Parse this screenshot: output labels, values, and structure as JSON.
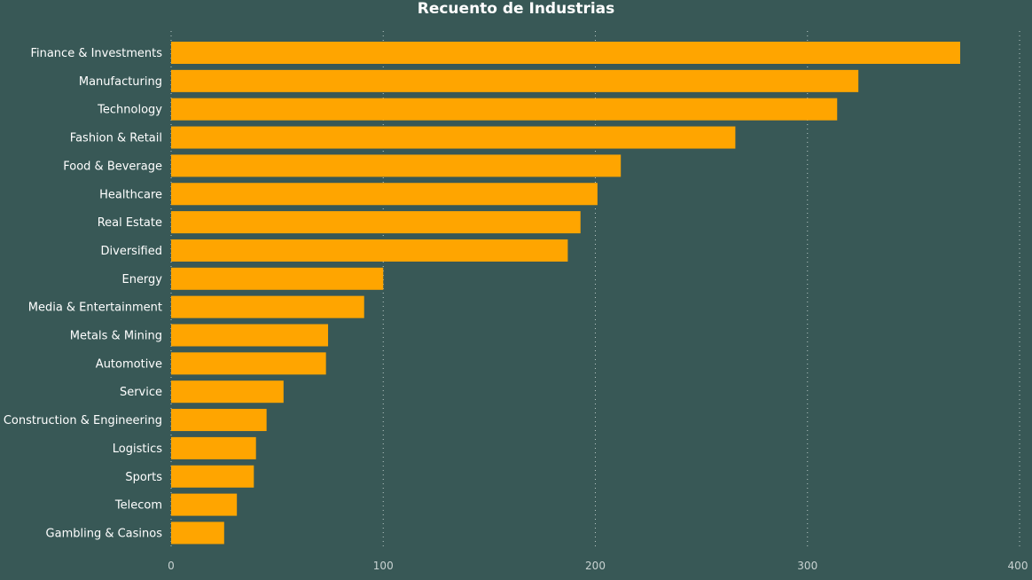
{
  "chart_data": {
    "type": "bar",
    "orientation": "horizontal",
    "title": "Recuento de Industrias",
    "xlabel": "",
    "ylabel": "",
    "categories": [
      "Finance & Investments",
      "Manufacturing",
      "Technology",
      "Fashion & Retail",
      "Food & Beverage",
      "Healthcare",
      "Real Estate",
      "Diversified",
      "Energy",
      "Media & Entertainment",
      "Metals & Mining",
      "Automotive",
      "Service",
      "Construction & Engineering",
      "Logistics",
      "Sports",
      "Telecom",
      "Gambling & Casinos"
    ],
    "values": [
      372,
      324,
      314,
      266,
      212,
      201,
      193,
      187,
      100,
      91,
      74,
      73,
      53,
      45,
      40,
      39,
      31,
      25
    ],
    "xlim": [
      0,
      400
    ],
    "xticks": [
      0,
      100,
      200,
      300,
      400
    ],
    "grid": "vertical-dotted",
    "legend": "none",
    "colors": {
      "background": "#385856",
      "bar": "#FFA500",
      "grid": "#b9c7c5",
      "text": "#ffffff"
    }
  }
}
